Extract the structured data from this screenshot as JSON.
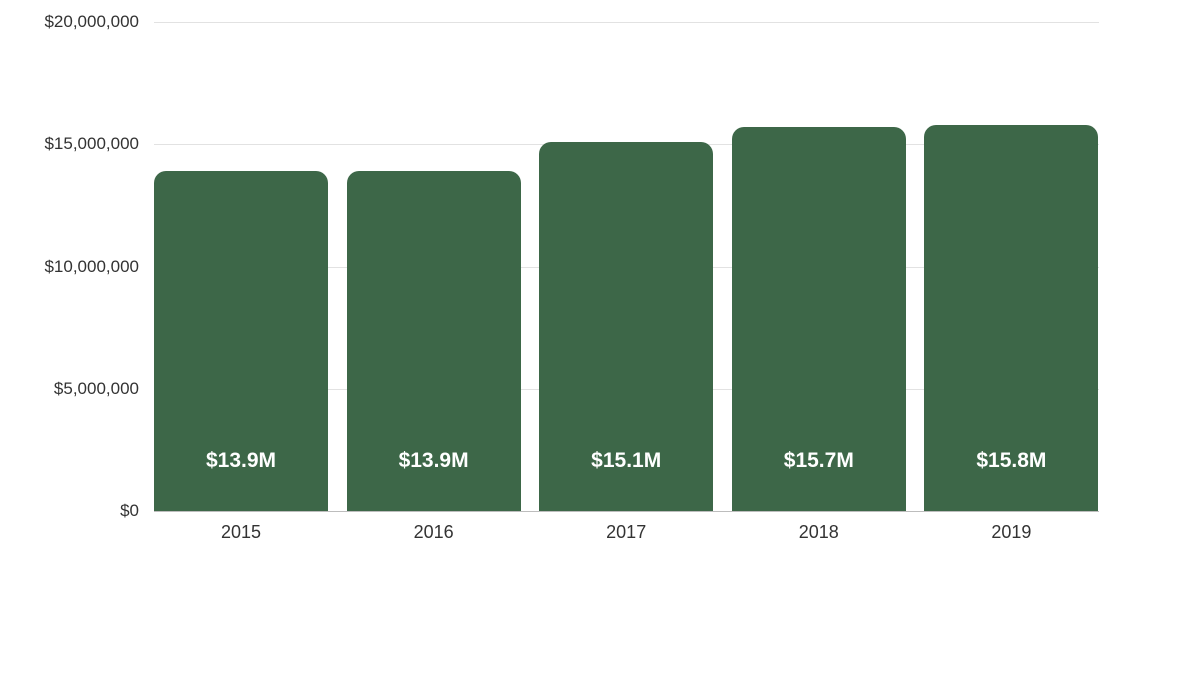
{
  "chart_data": {
    "type": "bar",
    "title": "",
    "xlabel": "",
    "ylabel": "",
    "categories": [
      "2015",
      "2016",
      "2017",
      "2018",
      "2019"
    ],
    "values": [
      13900000,
      13900000,
      15100000,
      15700000,
      15800000
    ],
    "data_labels": [
      "$13.9M",
      "$13.9M",
      "$15.1M",
      "$15.7M",
      "$15.8M"
    ],
    "ylim": [
      0,
      20000000
    ],
    "yticks": [
      0,
      5000000,
      10000000,
      15000000,
      20000000
    ],
    "ytick_labels": [
      "$0",
      "$5,000,000",
      "$10,000,000",
      "$15,000,000",
      "$20,000,000"
    ],
    "grid": true,
    "legend": null,
    "bar_color": "#3d6748"
  }
}
